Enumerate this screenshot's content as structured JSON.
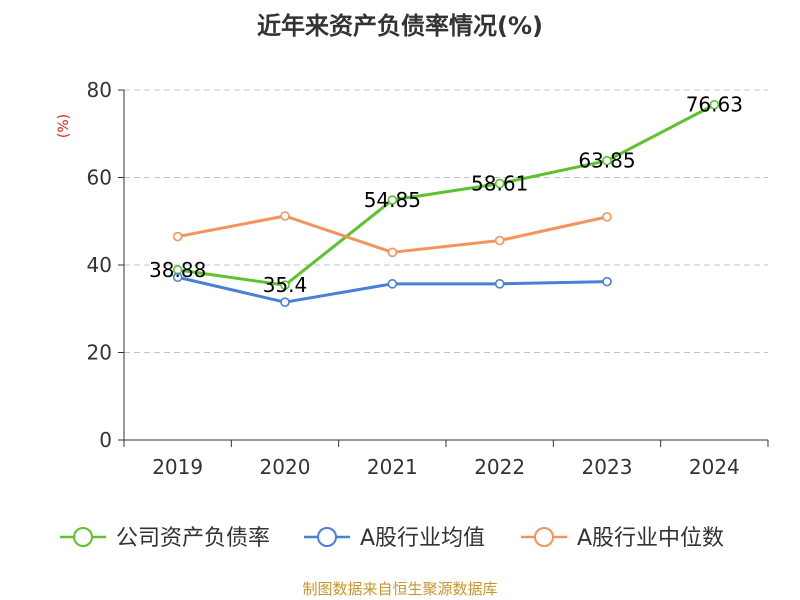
{
  "chart_data": {
    "type": "line",
    "title": "近年来资产负债率情况(%)",
    "ylabel": "(%)",
    "xlabel": "",
    "categories": [
      "2019",
      "2020",
      "2021",
      "2022",
      "2023",
      "2024"
    ],
    "ylim": [
      0,
      80
    ],
    "yticks": [
      0,
      20,
      40,
      60,
      80
    ],
    "grid": true,
    "legend_position": "bottom",
    "series": [
      {
        "name": "公司资产负债率",
        "color": "#5cc22e",
        "values": [
          38.88,
          35.4,
          54.85,
          58.61,
          63.85,
          76.63
        ],
        "labels": [
          "38.88",
          "35.4",
          "54.85",
          "58.61",
          "63.85",
          "76.63"
        ]
      },
      {
        "name": "A股行业均值",
        "color": "#4a7fd8",
        "values": [
          37.2,
          31.5,
          35.7,
          35.7,
          36.2,
          null
        ]
      },
      {
        "name": "A股行业中位数",
        "color": "#f5935a",
        "values": [
          46.5,
          51.2,
          42.9,
          45.6,
          51.0,
          null
        ]
      }
    ],
    "source": "制图数据来自恒生聚源数据库"
  }
}
